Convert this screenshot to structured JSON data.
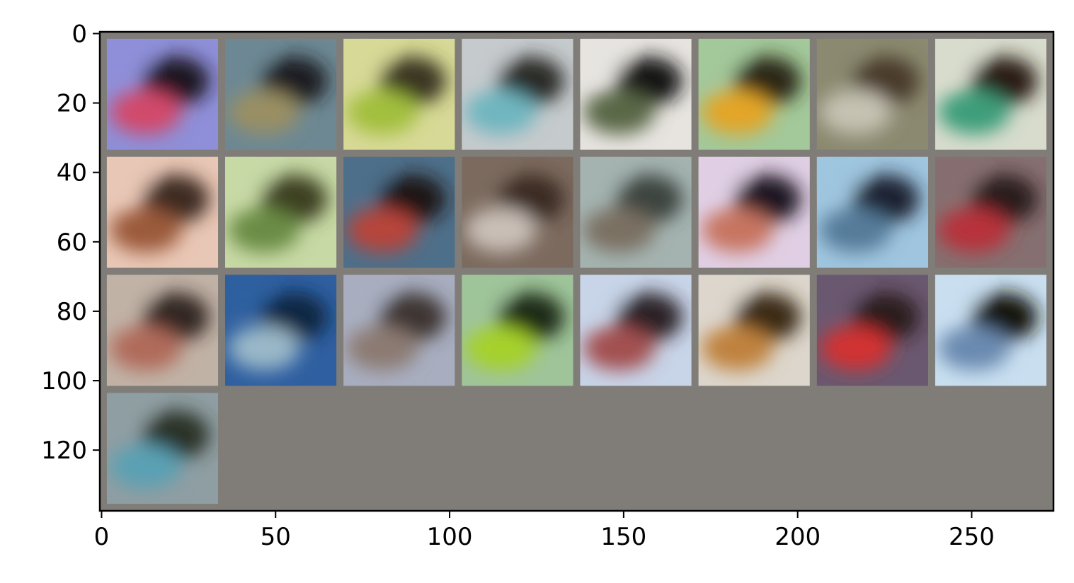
{
  "image": {
    "description_free": true,
    "pixel_grid": {
      "width": 274,
      "height": 138
    },
    "grid": {
      "rows": 4,
      "cols": 8,
      "tile_size": 32,
      "padding": 2,
      "tile_count": 25
    },
    "background_color": "#807d78"
  },
  "axes": {
    "xticks": [
      "0",
      "50",
      "100",
      "150",
      "200",
      "250"
    ],
    "xtick_values": [
      0,
      50,
      100,
      150,
      200,
      250
    ],
    "yticks": [
      "0",
      "20",
      "40",
      "60",
      "80",
      "100",
      "120"
    ],
    "ytick_values": [
      0,
      20,
      40,
      60,
      80,
      100,
      120
    ],
    "xlim": [
      -0.5,
      273.5
    ],
    "ylim": [
      137.5,
      -0.5
    ]
  },
  "tiles": [
    {
      "c1": "#8e8fd8",
      "c2": "#1a1420",
      "c3": "#d24a6a"
    },
    {
      "c1": "#6d8893",
      "c2": "#1b1f20",
      "c3": "#9a8f63"
    },
    {
      "c1": "#d7d996",
      "c2": "#3b3524",
      "c3": "#a2bf3c"
    },
    {
      "c1": "#c5cacc",
      "c2": "#2b2b27",
      "c3": "#6fb6c0"
    },
    {
      "c1": "#e7e4e0",
      "c2": "#141313",
      "c3": "#5a6746"
    },
    {
      "c1": "#a3c89a",
      "c2": "#2a2816",
      "c3": "#e3a528"
    },
    {
      "c1": "#8b8a70",
      "c2": "#4a3a2a",
      "c3": "#c6c2b3"
    },
    {
      "c1": "#d8dccd",
      "c2": "#2a1c12",
      "c3": "#3e9e7a"
    },
    {
      "c1": "#e9c7b6",
      "c2": "#3e2a20",
      "c3": "#9b5a3b"
    },
    {
      "c1": "#c7d9a5",
      "c2": "#3c4124",
      "c3": "#6a8c44"
    },
    {
      "c1": "#4e6f89",
      "c2": "#1f1812",
      "c3": "#b7443a"
    },
    {
      "c1": "#7c6a5e",
      "c2": "#3a2c24",
      "c3": "#c9bfb7"
    },
    {
      "c1": "#a4b3b0",
      "c2": "#3e4440",
      "c3": "#7a7062"
    },
    {
      "c1": "#e0cfe4",
      "c2": "#1c1520",
      "c3": "#c77560"
    },
    {
      "c1": "#9fc5df",
      "c2": "#1e2430",
      "c3": "#547b9a"
    },
    {
      "c1": "#866f70",
      "c2": "#2a1c1c",
      "c3": "#b8303a"
    },
    {
      "c1": "#c1b2a6",
      "c2": "#302624",
      "c3": "#b06a5a"
    },
    {
      "c1": "#2f5fa0",
      "c2": "#0f2542",
      "c3": "#9ab8c8"
    },
    {
      "c1": "#a8aec0",
      "c2": "#3d3530",
      "c3": "#8c7a72"
    },
    {
      "c1": "#9fc49a",
      "c2": "#1b2a18",
      "c3": "#a6d12a"
    },
    {
      "c1": "#c8d4e8",
      "c2": "#2a2428",
      "c3": "#a35050"
    },
    {
      "c1": "#dcd6cc",
      "c2": "#3a2a18",
      "c3": "#c0823c"
    },
    {
      "c1": "#6a5870",
      "c2": "#2a1a1e",
      "c3": "#d23030"
    },
    {
      "c1": "#c9dff0",
      "c2": "#15120f",
      "c3": "#6a8ab0"
    },
    {
      "c1": "#8f9ea2",
      "c2": "#2a3226",
      "c3": "#5aa0b4"
    }
  ]
}
